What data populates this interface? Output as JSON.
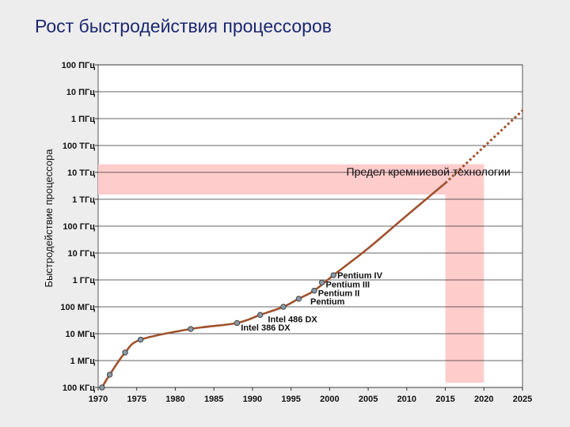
{
  "title": "Рост быстродействия процессоров",
  "chart_data": {
    "type": "line",
    "title": "Рост быстродействия процессоров",
    "ylabel": "Быстродействие процессора",
    "xlabel": "",
    "xlim": [
      1970,
      2025
    ],
    "x_ticks": [
      1970,
      1975,
      1980,
      1985,
      1990,
      1995,
      2000,
      2005,
      2010,
      2015,
      2020,
      2025
    ],
    "y_scale": "log",
    "y_ticks": [
      {
        "value": 100000,
        "label": "100 КГц"
      },
      {
        "value": 1000000,
        "label": "1 МГц"
      },
      {
        "value": 10000000,
        "label": "10 МГц"
      },
      {
        "value": 100000000,
        "label": "100 МГц"
      },
      {
        "value": 1000000000,
        "label": "1 ГГц"
      },
      {
        "value": 10000000000,
        "label": "10 ГГц"
      },
      {
        "value": 100000000000,
        "label": "100 ГГц"
      },
      {
        "value": 1000000000000,
        "label": "1 ТГц"
      },
      {
        "value": 10000000000000,
        "label": "10 ТГц"
      },
      {
        "value": 100000000000000,
        "label": "100 ТГц"
      },
      {
        "value": 1000000000000000,
        "label": "1 ПГц"
      },
      {
        "value": 10000000000000000,
        "label": "10 ПГц"
      },
      {
        "value": 100000000000000000,
        "label": "100 ПГц"
      }
    ],
    "ylim": [
      100000,
      100000000000000000
    ],
    "grid": true,
    "series": [
      {
        "style": "solid",
        "color": "#a0522d",
        "points": [
          {
            "x": 1970.5,
            "y": 100000
          },
          {
            "x": 1971.5,
            "y": 300000
          },
          {
            "x": 1973.5,
            "y": 2000000
          },
          {
            "x": 1975.5,
            "y": 6000000
          },
          {
            "x": 1982,
            "y": 15000000
          },
          {
            "x": 1988,
            "y": 25000000
          },
          {
            "x": 1991,
            "y": 50000000
          },
          {
            "x": 1994,
            "y": 100000000
          },
          {
            "x": 1996,
            "y": 200000000
          },
          {
            "x": 1998,
            "y": 400000000
          },
          {
            "x": 2000.5,
            "y": 1500000000
          },
          {
            "x": 2005,
            "y": 15000000000
          },
          {
            "x": 2010,
            "y": 250000000000
          },
          {
            "x": 2015,
            "y": 4000000000000
          }
        ]
      },
      {
        "style": "dotted",
        "color": "#a0522d",
        "points": [
          {
            "x": 2015,
            "y": 4000000000000
          },
          {
            "x": 2025,
            "y": 2000000000000000
          }
        ]
      }
    ],
    "markers": [
      {
        "x": 1970.5,
        "y": 100000
      },
      {
        "x": 1971.5,
        "y": 300000
      },
      {
        "x": 1973.5,
        "y": 2000000
      },
      {
        "x": 1975.5,
        "y": 6000000
      },
      {
        "x": 1982,
        "y": 15000000
      },
      {
        "x": 1988,
        "y": 25000000
      },
      {
        "x": 1991,
        "y": 50000000
      },
      {
        "x": 1994,
        "y": 100000000
      },
      {
        "x": 1996,
        "y": 200000000
      },
      {
        "x": 1998,
        "y": 400000000
      },
      {
        "x": 1999,
        "y": 800000000
      },
      {
        "x": 2000.5,
        "y": 1500000000
      }
    ],
    "annotations": [
      {
        "text": "Pentium IV",
        "x": 2001,
        "y": 1500000000
      },
      {
        "text": "Pentium III",
        "x": 1999.5,
        "y": 700000000
      },
      {
        "text": "Pentium II",
        "x": 1998.5,
        "y": 330000000
      },
      {
        "text": "Pentium",
        "x": 1997.5,
        "y": 160000000
      },
      {
        "text": "Intel 486 DX",
        "x": 1992,
        "y": 35000000
      },
      {
        "text": "Intel 386 DX",
        "x": 1988.5,
        "y": 17000000
      }
    ],
    "limit_band": {
      "label": "Предел кремниевой технологии",
      "color": "#ffcccc",
      "y_range": [
        1500000000000,
        20000000000000
      ],
      "x_range": [
        1970,
        2020
      ],
      "column_x_range": [
        2015,
        2020
      ]
    }
  }
}
